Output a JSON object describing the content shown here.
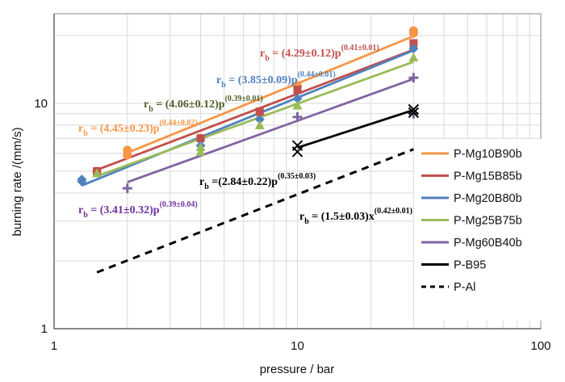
{
  "chart_data": {
    "type": "scatter",
    "xscale": "log",
    "yscale": "log",
    "xlim": [
      1,
      100
    ],
    "ylim": [
      1,
      25
    ],
    "xlabel": "pressure  / bar",
    "ylabel": "burning rate  /(mm/s)",
    "x_ticks": [
      "1",
      "10",
      "100"
    ],
    "y_ticks": [
      "1",
      "10"
    ],
    "grid": true,
    "legend_position": "right",
    "series": [
      {
        "name": "P-Mg10B90b",
        "color": "#f79646",
        "marker": "circle",
        "line": "solid",
        "points": [
          [
            1.5,
            5.0
          ],
          [
            2,
            6.2
          ],
          [
            2,
            5.9
          ],
          [
            4,
            7.0
          ],
          [
            7,
            9.0
          ],
          [
            10,
            12.0
          ],
          [
            30,
            21.0
          ],
          [
            30,
            20.5
          ]
        ],
        "fit": {
          "a": 4.45,
          "n": 0.44,
          "x0": 2,
          "x1": 30
        }
      },
      {
        "name": "P-Mg15B85b",
        "color": "#c0504d",
        "marker": "square",
        "line": "solid",
        "points": [
          [
            1.5,
            5.0
          ],
          [
            4,
            7.0
          ],
          [
            7,
            9.2
          ],
          [
            10,
            11.5
          ],
          [
            30,
            18.5
          ]
        ],
        "fit": {
          "a": 4.29,
          "n": 0.41,
          "x0": 1.5,
          "x1": 30
        }
      },
      {
        "name": "P-Mg20B80b",
        "color": "#4f81bd",
        "marker": "diamond",
        "line": "solid",
        "points": [
          [
            1.3,
            4.6
          ],
          [
            1.3,
            4.5
          ],
          [
            4,
            6.5
          ],
          [
            7,
            8.5
          ],
          [
            10,
            10.5
          ],
          [
            30,
            17.5
          ]
        ],
        "fit": {
          "a": 3.85,
          "n": 0.44,
          "x0": 1.3,
          "x1": 30
        }
      },
      {
        "name": "P-Mg25B75b",
        "color": "#9bbb59",
        "marker": "triangle",
        "line": "solid",
        "points": [
          [
            1.5,
            4.9
          ],
          [
            4,
            6.1
          ],
          [
            4,
            6.4
          ],
          [
            7,
            8.0
          ],
          [
            10,
            9.8
          ],
          [
            30,
            16.0
          ]
        ],
        "fit": {
          "a": 4.06,
          "n": 0.39,
          "x0": 1.5,
          "x1": 30
        }
      },
      {
        "name": "P-Mg60B40b",
        "color": "#8064a2",
        "marker": "plus",
        "line": "solid",
        "points": [
          [
            2,
            4.2
          ],
          [
            10,
            8.7
          ],
          [
            30,
            13.0
          ],
          [
            30,
            9.0
          ]
        ],
        "fit": {
          "a": 3.41,
          "n": 0.39,
          "x0": 2,
          "x1": 30
        }
      },
      {
        "name": "P-B95",
        "color": "#000000",
        "marker": "x",
        "line": "solid",
        "points": [
          [
            10,
            6.5
          ],
          [
            10,
            6.1
          ],
          [
            30,
            9.4
          ],
          [
            30,
            9.1
          ]
        ],
        "fit": {
          "a": 2.84,
          "n": 0.35,
          "x0": 10,
          "x1": 30
        }
      },
      {
        "name": "P-Al",
        "color": "#000000",
        "marker": "none",
        "line": "dashed",
        "points": [],
        "fit": {
          "a": 1.5,
          "n": 0.42,
          "x0": 1.5,
          "x1": 30
        }
      }
    ],
    "equations": [
      {
        "series": "P-Mg15B85b",
        "color": "#c0504d",
        "pre": "r",
        "sub": "b",
        "mid": " = (4.29±0.12)p",
        "sup": "(0.41±0.01)"
      },
      {
        "series": "P-Mg20B80b",
        "color": "#4f81bd",
        "pre": "r",
        "sub": "b",
        "mid": " = (3.85±0.09)p",
        "sup": "(0.44±0.01)"
      },
      {
        "series": "P-Mg25B75b",
        "color": "#4f6228",
        "pre": "r",
        "sub": "b",
        "mid": " = (4.06±0.12)p",
        "sup": "(0.39±0.01)"
      },
      {
        "series": "P-Mg10B90b",
        "color": "#f79646",
        "pre": "r",
        "sub": "b",
        "mid": " = (4.45±0.23)p",
        "sup": "(0.44±0.02)"
      },
      {
        "series": "P-B95",
        "color": "#000000",
        "pre": "r",
        "sub": "b",
        "mid": " =(2.84±0.22)p",
        "sup": "(0.35±0.03)"
      },
      {
        "series": "P-Mg60B40b",
        "color": "#7030a0",
        "pre": "r",
        "sub": "b",
        "mid": " = (3.41±0.32)p",
        "sup": "(0.39±0.04)"
      },
      {
        "series": "P-Al",
        "color": "#000000",
        "pre": "r",
        "sub": "b",
        "mid": " = (1.5±0.03)x",
        "sup": "(0.42±0.01)"
      }
    ]
  }
}
